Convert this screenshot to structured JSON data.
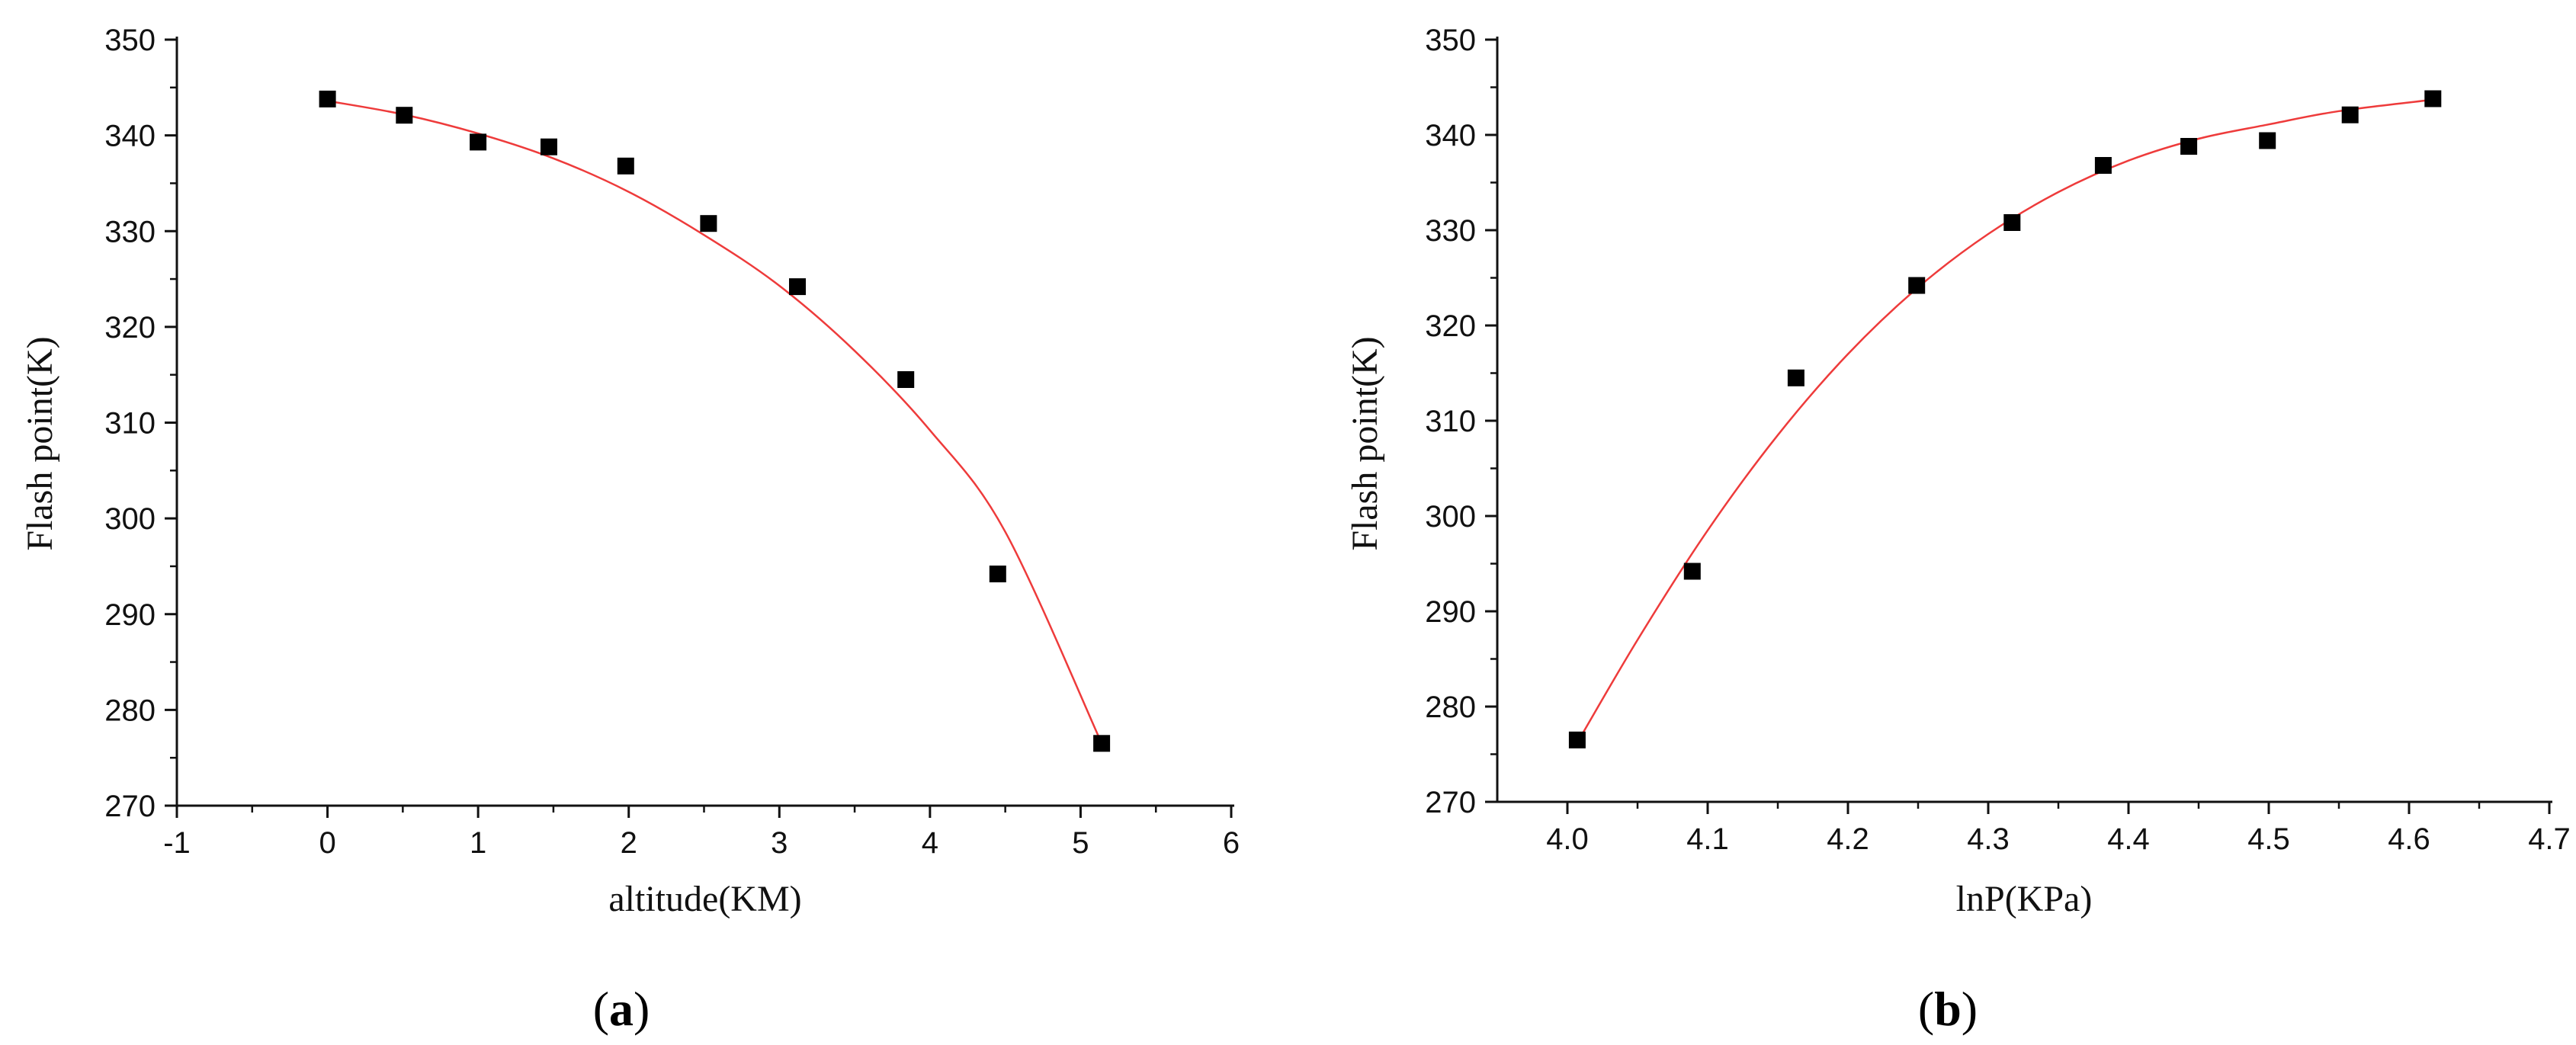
{
  "colors": {
    "axis": "#111111",
    "fit_curve": "#ee3b3b",
    "marker": "#000000"
  },
  "chart_data": [
    {
      "type": "scatter",
      "panel_label": "a",
      "xlabel": "altitude(KM)",
      "ylabel": "Flash point(K)",
      "xlim": [
        -1,
        6
      ],
      "ylim": [
        270,
        350
      ],
      "xticks": [
        "-1",
        "0",
        "1",
        "2",
        "3",
        "4",
        "5",
        "6"
      ],
      "yticks": [
        "270",
        "280",
        "290",
        "300",
        "310",
        "320",
        "330",
        "340",
        "350"
      ],
      "grid": false,
      "marker": "filled-square",
      "points": [
        {
          "x": 0.0,
          "y": 343.8
        },
        {
          "x": 0.51,
          "y": 342.1
        },
        {
          "x": 1.0,
          "y": 339.3
        },
        {
          "x": 1.47,
          "y": 338.8
        },
        {
          "x": 1.98,
          "y": 336.8
        },
        {
          "x": 2.53,
          "y": 330.8
        },
        {
          "x": 3.12,
          "y": 324.2
        },
        {
          "x": 3.84,
          "y": 314.5
        },
        {
          "x": 4.45,
          "y": 294.2
        },
        {
          "x": 5.14,
          "y": 276.5
        }
      ],
      "fit_curve": [
        {
          "x": 0.0,
          "y": 343.6
        },
        {
          "x": 0.5,
          "y": 342.2
        },
        {
          "x": 1.0,
          "y": 340.2
        },
        {
          "x": 1.5,
          "y": 337.6
        },
        {
          "x": 2.0,
          "y": 334.1
        },
        {
          "x": 2.5,
          "y": 329.6
        },
        {
          "x": 3.0,
          "y": 324.3
        },
        {
          "x": 3.5,
          "y": 317.5
        },
        {
          "x": 4.0,
          "y": 309.2
        },
        {
          "x": 4.5,
          "y": 298.6
        },
        {
          "x": 5.14,
          "y": 276.5
        }
      ]
    },
    {
      "type": "scatter",
      "panel_label": "b",
      "xlabel": "lnP(KPa)",
      "ylabel": "Flash point(K)",
      "xlim": [
        3.95,
        4.7
      ],
      "ylim": [
        270,
        350
      ],
      "xticks": [
        "4.0",
        "4.1",
        "4.2",
        "4.3",
        "4.4",
        "4.5",
        "4.6",
        "4.7"
      ],
      "yticks": [
        "270",
        "280",
        "290",
        "300",
        "310",
        "320",
        "330",
        "340",
        "350"
      ],
      "grid": false,
      "marker": "filled-square",
      "points": [
        {
          "x": 4.007,
          "y": 276.5
        },
        {
          "x": 4.089,
          "y": 294.2
        },
        {
          "x": 4.163,
          "y": 314.5
        },
        {
          "x": 4.249,
          "y": 324.2
        },
        {
          "x": 4.317,
          "y": 330.8
        },
        {
          "x": 4.382,
          "y": 336.8
        },
        {
          "x": 4.443,
          "y": 338.8
        },
        {
          "x": 4.499,
          "y": 339.4
        },
        {
          "x": 4.558,
          "y": 342.1
        },
        {
          "x": 4.617,
          "y": 343.8
        }
      ],
      "fit_curve": [
        {
          "x": 4.007,
          "y": 276.2
        },
        {
          "x": 4.05,
          "y": 287.0
        },
        {
          "x": 4.1,
          "y": 298.5
        },
        {
          "x": 4.15,
          "y": 308.5
        },
        {
          "x": 4.2,
          "y": 317.0
        },
        {
          "x": 4.25,
          "y": 324.0
        },
        {
          "x": 4.3,
          "y": 329.6
        },
        {
          "x": 4.35,
          "y": 334.0
        },
        {
          "x": 4.4,
          "y": 337.3
        },
        {
          "x": 4.45,
          "y": 339.6
        },
        {
          "x": 4.5,
          "y": 341.1
        },
        {
          "x": 4.55,
          "y": 342.5
        },
        {
          "x": 4.617,
          "y": 343.7
        }
      ]
    }
  ]
}
